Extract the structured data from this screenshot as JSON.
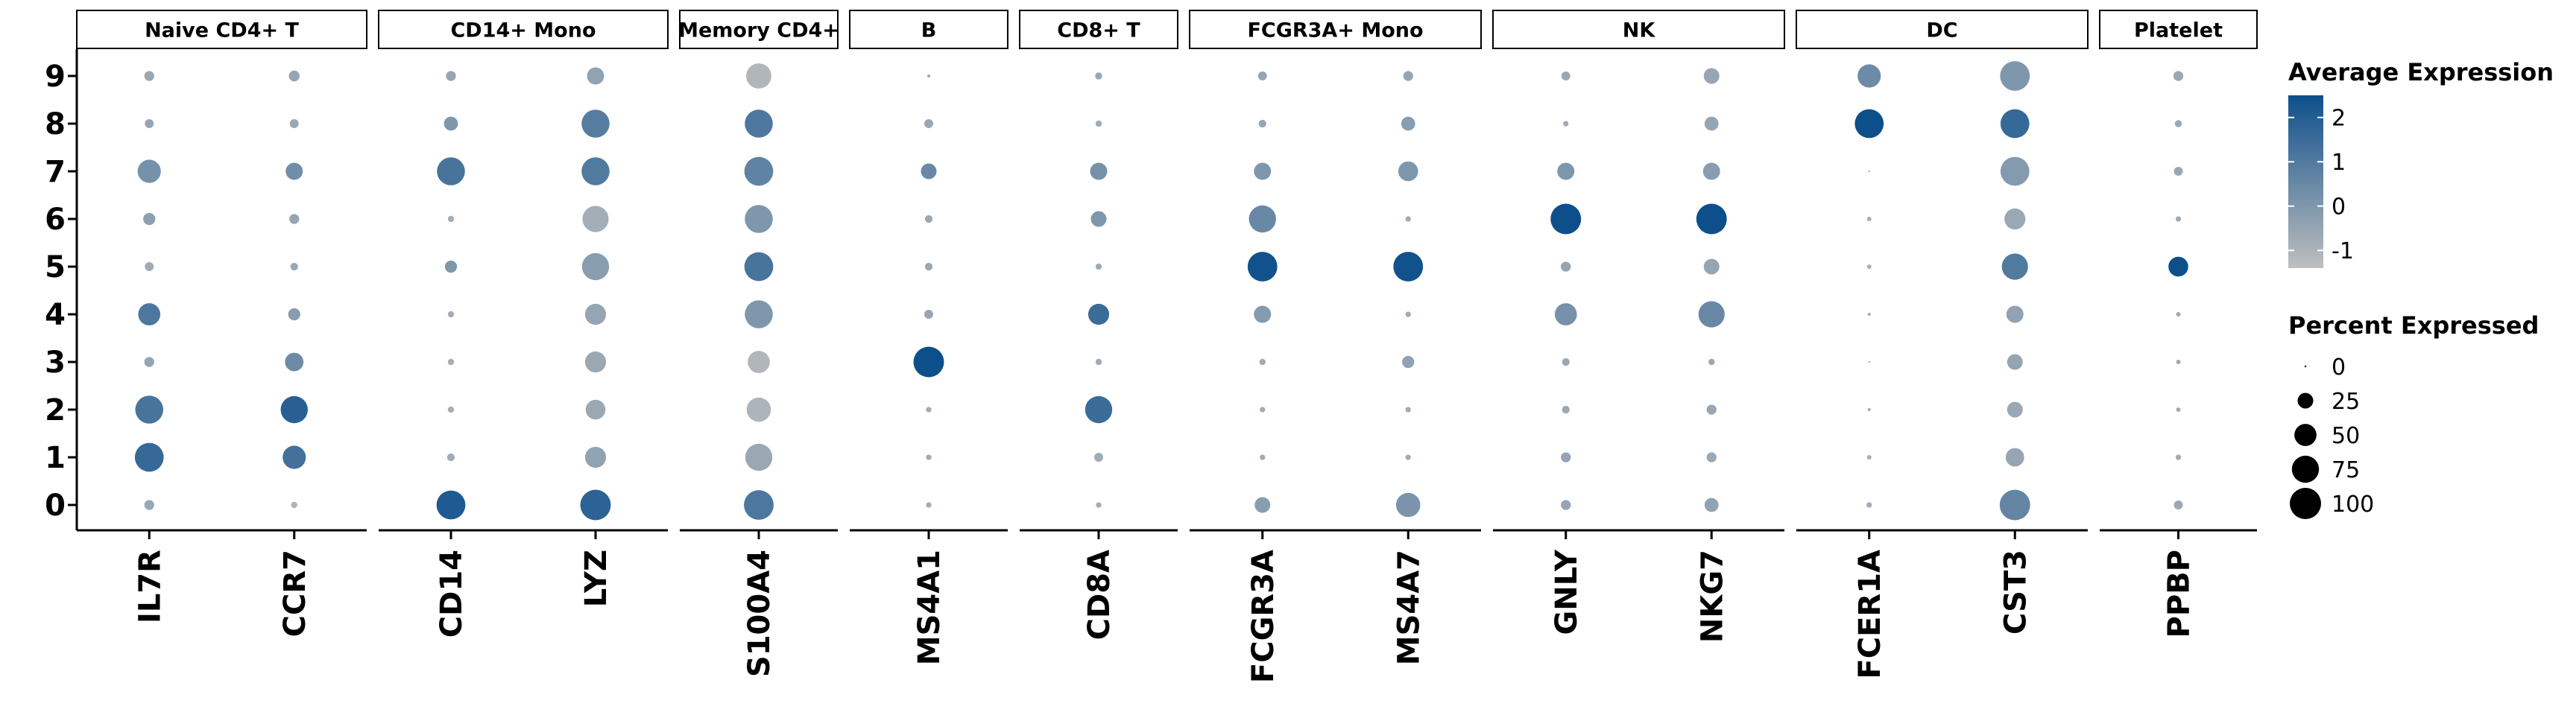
{
  "chart_data": {
    "type": "dotplot",
    "y_categories": [
      "0",
      "1",
      "2",
      "3",
      "4",
      "5",
      "6",
      "7",
      "8",
      "9"
    ],
    "panels": [
      {
        "name": "Naive CD4+ T",
        "genes": [
          "IL7R",
          "CCR7"
        ]
      },
      {
        "name": "CD14+ Mono",
        "genes": [
          "CD14",
          "LYZ"
        ]
      },
      {
        "name": "Memory CD4+",
        "genes": [
          "S100A4"
        ]
      },
      {
        "name": "B",
        "genes": [
          "MS4A1"
        ]
      },
      {
        "name": "CD8+ T",
        "genes": [
          "CD8A"
        ]
      },
      {
        "name": "FCGR3A+ Mono",
        "genes": [
          "FCGR3A",
          "MS4A7"
        ]
      },
      {
        "name": "NK",
        "genes": [
          "GNLY",
          "NKG7"
        ]
      },
      {
        "name": "DC",
        "genes": [
          "FCER1A",
          "CST3"
        ]
      },
      {
        "name": "Platelet",
        "genes": [
          "PPBP"
        ]
      }
    ],
    "points": {
      "IL7R": {
        "pct": [
          10,
          85,
          80,
          10,
          50,
          8,
          15,
          55,
          8,
          10
        ],
        "exp": [
          -0.6,
          1.6,
          1.2,
          -0.5,
          1.1,
          -0.7,
          -0.3,
          0.2,
          -0.5,
          -0.6
        ]
      },
      "CCR7": {
        "pct": [
          4,
          55,
          75,
          35,
          15,
          6,
          10,
          30,
          8,
          12
        ],
        "exp": [
          -1.0,
          1.3,
          1.9,
          0.4,
          -0.2,
          -0.6,
          -0.5,
          0.3,
          -0.6,
          -0.5
        ]
      },
      "CD14": {
        "pct": [
          85,
          6,
          4,
          4,
          4,
          15,
          4,
          80,
          20,
          10
        ],
        "exp": [
          2.1,
          -0.7,
          -0.8,
          -0.8,
          -0.8,
          0.0,
          -0.8,
          1.2,
          0.0,
          -0.5
        ]
      },
      "LYZ": {
        "pct": [
          95,
          45,
          40,
          45,
          45,
          75,
          70,
          80,
          80,
          30
        ],
        "exp": [
          1.8,
          -0.4,
          -0.6,
          -0.6,
          -0.5,
          -0.2,
          -0.8,
          1.0,
          0.9,
          -0.4
        ]
      },
      "S100A4": {
        "pct": [
          90,
          75,
          60,
          50,
          80,
          85,
          80,
          85,
          80,
          65
        ],
        "exp": [
          1.1,
          -0.6,
          -1.0,
          -1.1,
          0.0,
          1.2,
          0.0,
          0.7,
          1.1,
          -1.1
        ]
      },
      "MS4A1": {
        "pct": [
          3,
          3,
          3,
          95,
          8,
          6,
          6,
          25,
          8,
          1
        ],
        "exp": [
          -0.7,
          -0.7,
          -0.7,
          2.5,
          -0.5,
          -0.6,
          -0.6,
          0.5,
          -0.6,
          -0.7
        ]
      },
      "CD8A": {
        "pct": [
          3,
          8,
          75,
          4,
          45,
          4,
          25,
          30,
          4,
          5
        ],
        "exp": [
          -0.8,
          -0.7,
          1.5,
          -0.7,
          1.5,
          -0.7,
          0.0,
          0.2,
          -0.7,
          -0.6
        ]
      },
      "FCGR3A": {
        "pct": [
          25,
          3,
          3,
          4,
          30,
          90,
          75,
          30,
          6,
          8
        ],
        "exp": [
          -0.2,
          -0.7,
          -0.7,
          -0.7,
          -0.1,
          2.4,
          0.5,
          0.0,
          -0.5,
          -0.5
        ]
      },
      "MS4A7": {
        "pct": [
          60,
          3,
          3,
          15,
          3,
          90,
          3,
          40,
          20,
          10
        ],
        "exp": [
          0.1,
          -0.7,
          -0.7,
          -0.4,
          -0.7,
          2.4,
          -0.7,
          0.0,
          -0.2,
          -0.5
        ]
      },
      "GNLY": {
        "pct": [
          10,
          10,
          6,
          6,
          50,
          10,
          95,
          30,
          3,
          8
        ],
        "exp": [
          -0.5,
          -0.5,
          -0.6,
          -0.6,
          0.2,
          -0.5,
          2.5,
          0.0,
          -0.7,
          -0.6
        ]
      },
      "NKG7": {
        "pct": [
          20,
          10,
          10,
          4,
          70,
          25,
          95,
          30,
          20,
          25
        ],
        "exp": [
          -0.4,
          -0.6,
          -0.6,
          -0.6,
          0.5,
          -0.5,
          2.5,
          -0.2,
          -0.5,
          -0.5
        ]
      },
      "FCER1A": {
        "pct": [
          3,
          2,
          1,
          0,
          1,
          2,
          2,
          0,
          85,
          55
        ],
        "exp": [
          -0.7,
          -0.8,
          -0.8,
          -0.8,
          -0.8,
          -0.8,
          -0.8,
          -0.8,
          2.5,
          0.4
        ]
      },
      "CST3": {
        "pct": [
          95,
          35,
          25,
          25,
          30,
          70,
          45,
          85,
          85,
          90
        ],
        "exp": [
          0.6,
          -0.5,
          -0.6,
          -0.5,
          -0.4,
          1.0,
          -0.6,
          -0.1,
          1.6,
          0.0
        ]
      },
      "PPBP": {
        "pct": [
          8,
          3,
          2,
          2,
          2,
          40,
          3,
          8,
          5,
          10
        ],
        "exp": [
          -0.6,
          -0.7,
          -0.7,
          -0.7,
          -0.7,
          2.8,
          -0.7,
          -0.6,
          -0.6,
          -0.6
        ]
      }
    },
    "legend_color": {
      "title": "Average Expression",
      "ticks": [
        "2",
        "1",
        "0",
        "-1"
      ],
      "tick_values": [
        2,
        1,
        0,
        -1
      ],
      "range": [
        -1.4,
        2.5
      ],
      "low_color": "#bfbfbf",
      "high_color": "#0d4f8b"
    },
    "legend_size": {
      "title": "Percent Expressed",
      "labels": [
        "0",
        "25",
        "50",
        "75",
        "100"
      ],
      "values": [
        0,
        25,
        50,
        75,
        100
      ]
    },
    "colors": {
      "low": "#bfbfbf",
      "high": "#0d4f8b",
      "axis": "#000000",
      "strip_border": "#000000",
      "strip_fill": "#ffffff"
    }
  }
}
